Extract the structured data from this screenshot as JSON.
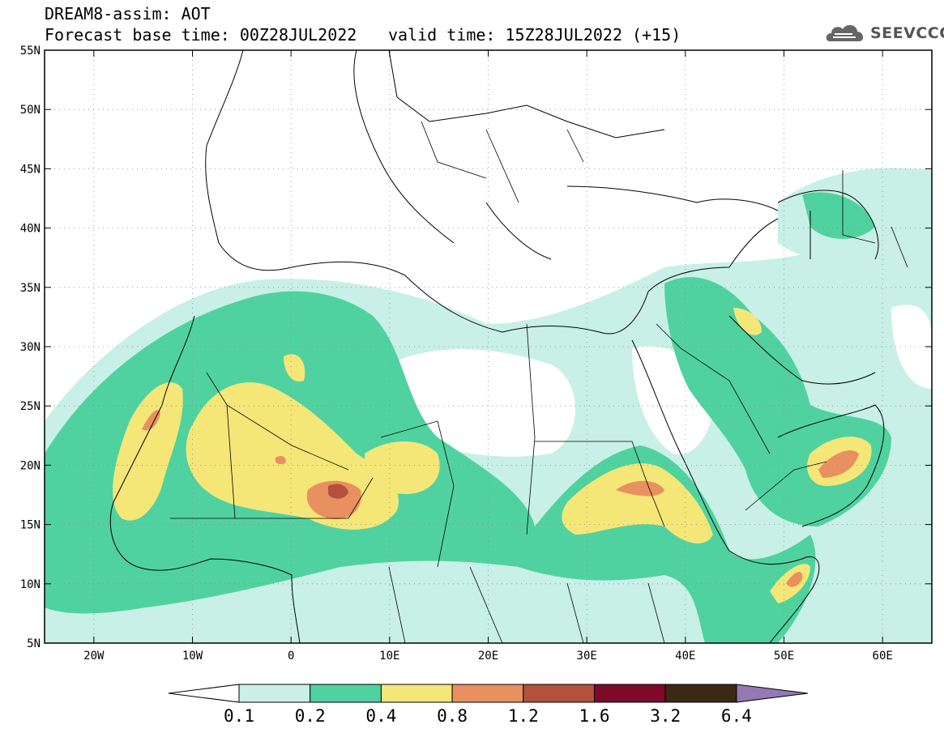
{
  "header": {
    "title_line1": "DREAM8-assim: AOT",
    "title_line2": "Forecast base time: 00Z28JUL2022",
    "valid_time": "valid time: 15Z28JUL2022 (+15)",
    "logo_text": "SEEVCCC"
  },
  "map": {
    "lon_range": [
      -25,
      65
    ],
    "lat_range": [
      5,
      55
    ],
    "lon_ticks": [
      {
        "value": -20,
        "label": "20W"
      },
      {
        "value": -10,
        "label": "10W"
      },
      {
        "value": 0,
        "label": "0"
      },
      {
        "value": 10,
        "label": "10E"
      },
      {
        "value": 20,
        "label": "20E"
      },
      {
        "value": 30,
        "label": "30E"
      },
      {
        "value": 40,
        "label": "40E"
      },
      {
        "value": 50,
        "label": "50E"
      },
      {
        "value": 60,
        "label": "60E"
      }
    ],
    "lat_ticks": [
      {
        "value": 55,
        "label": "55N"
      },
      {
        "value": 50,
        "label": "50N"
      },
      {
        "value": 45,
        "label": "45N"
      },
      {
        "value": 40,
        "label": "40N"
      },
      {
        "value": 35,
        "label": "35N"
      },
      {
        "value": 30,
        "label": "30N"
      },
      {
        "value": 25,
        "label": "25N"
      },
      {
        "value": 20,
        "label": "20N"
      },
      {
        "value": 15,
        "label": "15N"
      },
      {
        "value": 10,
        "label": "10N"
      },
      {
        "value": 5,
        "label": "5N"
      }
    ],
    "grid": "dotted"
  },
  "colorbar": {
    "levels": [
      "0.1",
      "0.2",
      "0.4",
      "0.8",
      "1.2",
      "1.6",
      "3.2",
      "6.4"
    ],
    "colors": [
      "#ffffff",
      "#c8f0e6",
      "#50d2a0",
      "#f5e678",
      "#e89060",
      "#b4503c",
      "#7d0a28",
      "#3c2814",
      "#9678b4"
    ]
  }
}
